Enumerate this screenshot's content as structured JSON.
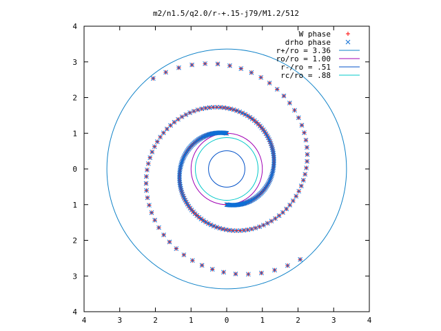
{
  "chart_data": {
    "type": "scatter",
    "title": "m2/n1.5/q2.0/r-+.15-j79/M1.2/512",
    "xlabel": "",
    "ylabel": "",
    "xlim": [
      -4,
      4
    ],
    "ylim": [
      -4,
      4
    ],
    "grid": false,
    "legend_placement": "top-right",
    "x_tick_labels": [
      "4",
      "3",
      "2",
      "1",
      "0",
      "1",
      "2",
      "3",
      "4"
    ],
    "y_tick_labels": [
      "4",
      "3",
      "2",
      "1",
      "0",
      "1",
      "2",
      "3",
      "4"
    ],
    "series": [
      {
        "name": "W phase",
        "marker": "plus",
        "color": "#ff0000",
        "arms": [
          {
            "r0": 1.0,
            "theta0": 90,
            "dir": 1
          },
          {
            "r0": 1.0,
            "theta0": 270,
            "dir": 1
          }
        ]
      },
      {
        "name": "drho phase",
        "marker": "cross",
        "color": "#0d6fd6",
        "arms": [
          {
            "r0": 1.0,
            "theta0": 90,
            "dir": 1
          },
          {
            "r0": 1.0,
            "theta0": 270,
            "dir": 1
          }
        ]
      }
    ],
    "circles": [
      {
        "label": "r+/ro = 3.36",
        "r": 3.36,
        "color": "#0f82c8"
      },
      {
        "label": "ro/ro = 1.00",
        "r": 1.0,
        "color": "#a000b4"
      },
      {
        "label": "r-/ro = .51",
        "r": 0.51,
        "color": "#0050c8"
      },
      {
        "label": "rc/ro = .88",
        "r": 0.88,
        "color": "#00c8c8"
      }
    ]
  }
}
